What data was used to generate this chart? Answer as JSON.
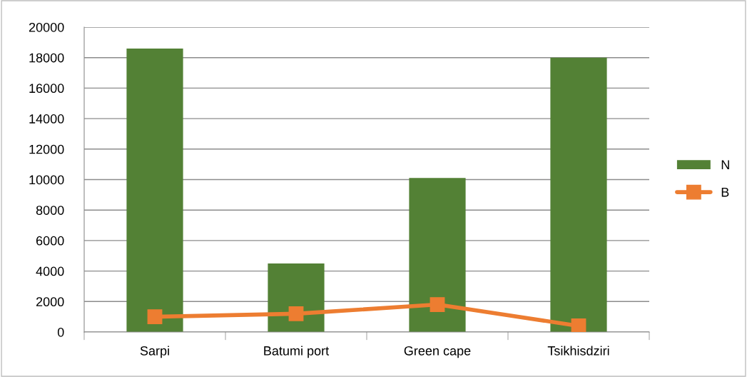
{
  "chart_data": {
    "type": "bar",
    "categories": [
      "Sarpi",
      "Batumi port",
      "Green cape",
      "Tsikhisdziri"
    ],
    "series": [
      {
        "name": "N",
        "color": "#538135",
        "values": [
          18600,
          4500,
          10100,
          18000
        ]
      },
      {
        "name": "B",
        "type": "line",
        "color": "#ed7d31",
        "values": [
          1000,
          1200,
          1800,
          400
        ],
        "marker": "square",
        "line_style": "solid"
      }
    ],
    "ylim": [
      0,
      20000
    ],
    "yticks": [
      0,
      2000,
      4000,
      6000,
      8000,
      10000,
      12000,
      14000,
      16000,
      18000,
      20000
    ],
    "grid": "y",
    "legend": "right"
  }
}
